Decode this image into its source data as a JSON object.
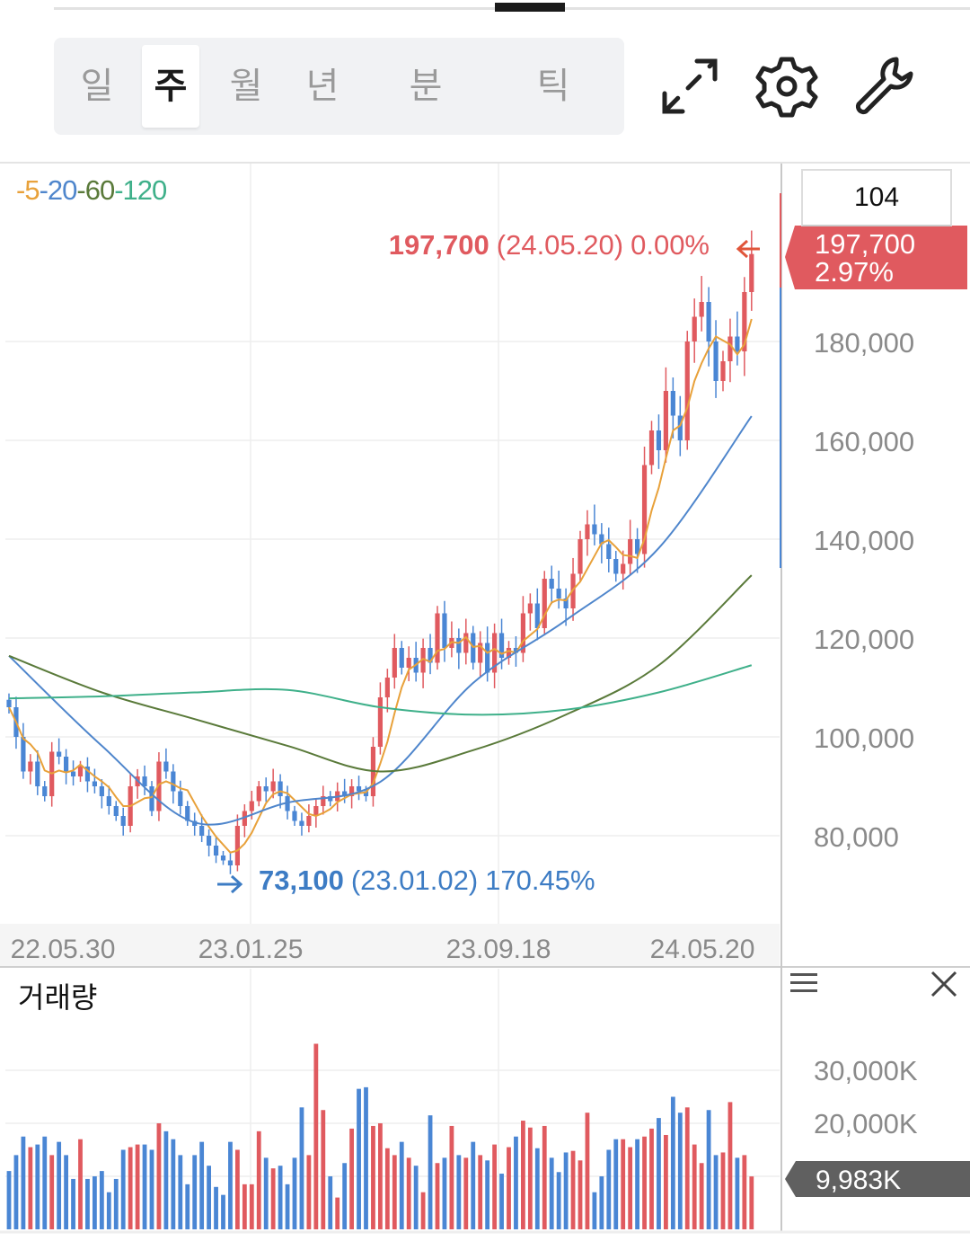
{
  "periods": [
    {
      "label": "일",
      "active": false
    },
    {
      "label": "주",
      "active": true
    },
    {
      "label": "월",
      "active": false
    },
    {
      "label": "년",
      "active": false
    },
    {
      "label": "분",
      "active": false
    },
    {
      "label": "틱",
      "active": false
    }
  ],
  "toolbar": {
    "expand_icon": "expand-icon",
    "settings_icon": "gear-icon",
    "tools_icon": "wrench-icon"
  },
  "legend": [
    {
      "label": "5",
      "color": "#e8a13a"
    },
    {
      "label": "20",
      "color": "#4f86cc"
    },
    {
      "label": "60",
      "color": "#5a7a3a"
    },
    {
      "label": "120",
      "color": "#3fb08a"
    }
  ],
  "visible_count": "104",
  "current_price_tag": {
    "price": "197,700",
    "change": "2.97%"
  },
  "max_annotation": {
    "price": "197,700",
    "date": "(24.05.20)",
    "pct": "0.00%"
  },
  "min_annotation": {
    "price": "73,100",
    "date": "(23.01.02)",
    "pct": "170.45%"
  },
  "volume_panel": {
    "title": "거래량",
    "current": "9,983K",
    "menu_icon": "menu-icon",
    "close_icon": "close-icon"
  },
  "colors": {
    "up": "#e05a5f",
    "down": "#4a86d4",
    "tag_volume": "#606060"
  },
  "chart_data": {
    "type": "candlestick",
    "title": "",
    "interval": "weekly",
    "y_ticks": [
      "180,000",
      "160,000",
      "140,000",
      "120,000",
      "100,000",
      "80,000"
    ],
    "y_tick_values": [
      180,
      160,
      140,
      120,
      100,
      80
    ],
    "y_unit": "thousand KRW",
    "ylim": [
      70,
      205
    ],
    "x_ticks": [
      {
        "label": "22.05.30",
        "index": 8
      },
      {
        "label": "23.01.25",
        "index": 34
      },
      {
        "label": "23.09.18",
        "index": 69
      },
      {
        "label": "24.05.20",
        "index": 97
      }
    ],
    "closes": [
      106,
      100,
      93,
      95,
      90,
      88,
      97,
      96,
      93,
      92,
      94,
      91,
      90,
      88,
      86,
      84,
      82,
      90,
      92,
      90,
      85,
      95,
      93,
      89,
      86,
      83,
      82,
      80,
      78,
      76,
      75,
      74,
      82,
      85,
      87,
      90,
      89,
      91,
      88,
      85,
      83,
      82,
      84,
      86,
      88,
      87,
      89,
      88,
      90,
      89,
      88,
      98,
      108,
      112,
      118,
      114,
      116,
      113,
      118,
      115,
      125,
      118,
      120,
      117,
      121,
      115,
      119,
      113,
      121,
      116,
      118,
      117,
      125,
      127,
      122,
      132,
      130,
      128,
      126,
      133,
      140,
      143,
      141,
      139,
      136,
      133,
      135,
      140,
      137,
      155,
      162,
      158,
      170,
      165,
      160,
      180,
      185,
      188,
      180,
      172,
      176,
      181,
      178,
      190,
      197.7
    ],
    "moving_averages": {
      "sample_index": [
        0,
        13,
        26,
        39,
        52,
        65,
        78,
        91,
        104
      ],
      "ma20": [
        116.4,
        98.2,
        82.7,
        86.7,
        90.9,
        110.9,
        123.6,
        138.2,
        164.9
      ],
      "ma60": [
        116.4,
        109,
        103.6,
        98.2,
        93,
        97.3,
        104.5,
        114.5,
        132.7
      ],
      "ma120": [
        107.8,
        108.2,
        109,
        109.5,
        106,
        104.5,
        105.5,
        109,
        114.5
      ]
    },
    "volume": {
      "y_ticks": [
        "30,000K",
        "20,000K"
      ],
      "y_tick_values": [
        30,
        20
      ],
      "unit": "million shares",
      "values": [
        11,
        14,
        17.5,
        15.5,
        16,
        17.5,
        14,
        16.5,
        14,
        9.5,
        17,
        9.5,
        10,
        11,
        7,
        9.5,
        15,
        15.5,
        16,
        16,
        15,
        20,
        18.5,
        17,
        14,
        8.5,
        14,
        16.5,
        12,
        8,
        6.5,
        16.5,
        15,
        8.5,
        8.5,
        18.5,
        13.5,
        11.5,
        12,
        8.5,
        13.5,
        23,
        14,
        35,
        22.5,
        10,
        6,
        12.5,
        19,
        26.5,
        26.8,
        19.5,
        20,
        15.3,
        14,
        16.5,
        13.5,
        12,
        7,
        21.5,
        12.5,
        13.5,
        19.5,
        14,
        13.5,
        16.5,
        14,
        13,
        16,
        10.5,
        15.5,
        17.5,
        20.5,
        19.2,
        15.3,
        19.5,
        13.5,
        10.8,
        14.5,
        14.8,
        13,
        22,
        7,
        10,
        15,
        17,
        17,
        15.5,
        17,
        17.5,
        19,
        21,
        17.8,
        25,
        22,
        23,
        16,
        12.5,
        22.5,
        14,
        14.5,
        24,
        13.5,
        14,
        9.983
      ]
    }
  }
}
